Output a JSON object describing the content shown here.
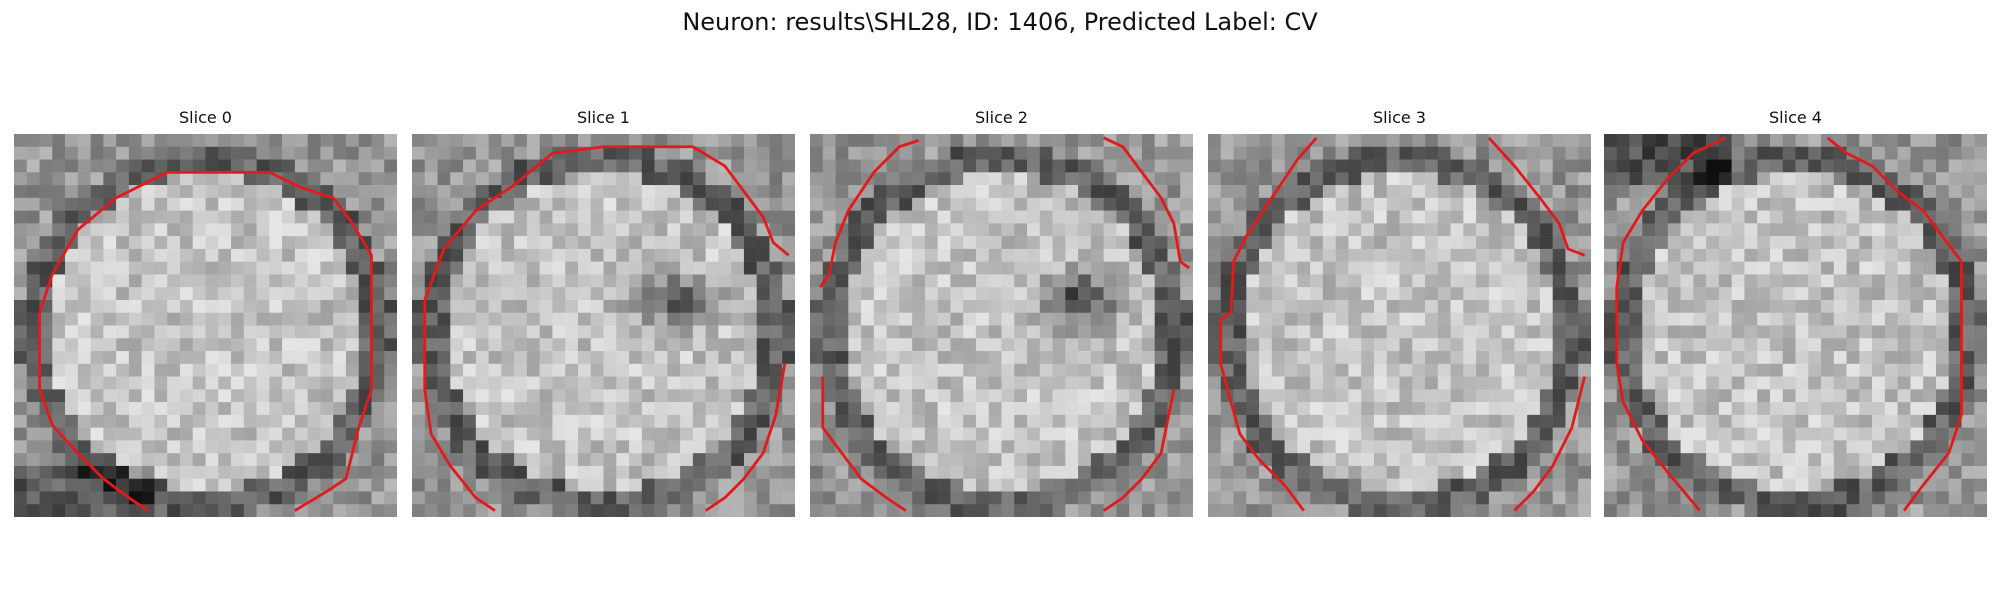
{
  "figure": {
    "title": "Neuron: results\\SHL28, ID: 1406, Predicted Label: CV"
  },
  "panels": [
    {
      "label": "Slice 0"
    },
    {
      "label": "Slice 1"
    },
    {
      "label": "Slice 2"
    },
    {
      "label": "Slice 3"
    },
    {
      "label": "Slice 4"
    }
  ],
  "colors": {
    "contour": "#e31a1c",
    "background": "#ffffff"
  }
}
